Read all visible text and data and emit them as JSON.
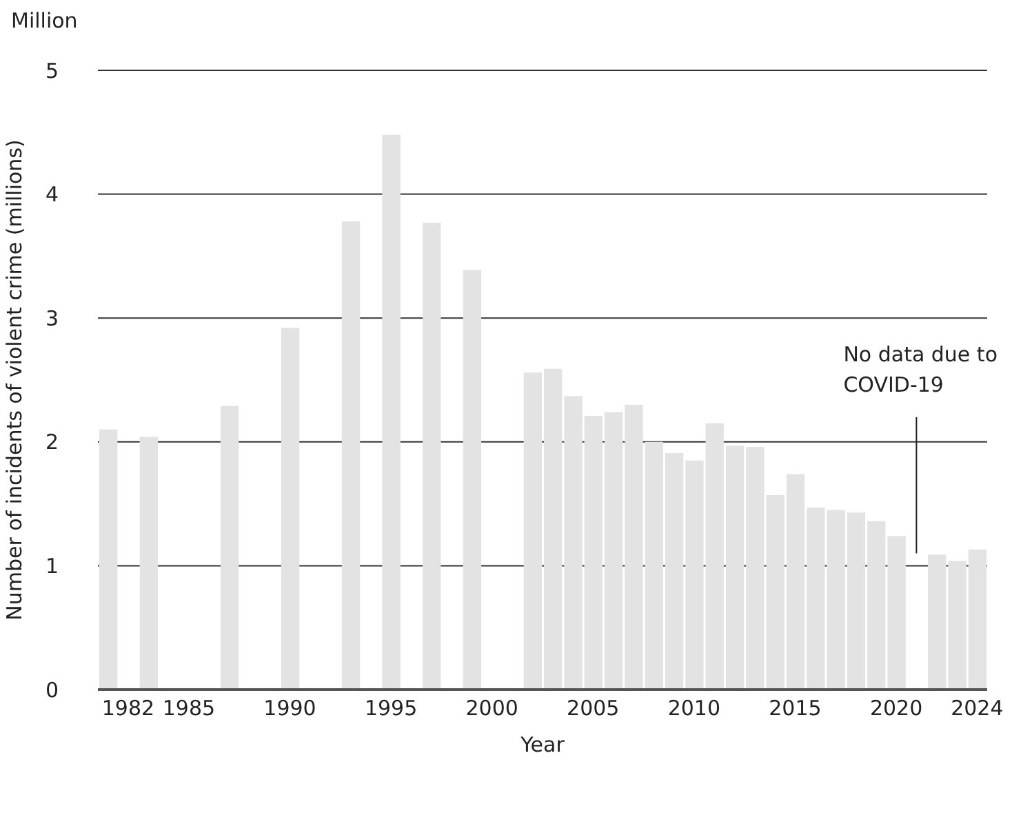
{
  "chart_data": {
    "type": "bar",
    "ylabel": "Number of incidents of violent crime (millions)",
    "xlabel": "Year",
    "x": [
      1981,
      1983,
      1987,
      1990,
      1993,
      1995,
      1997,
      1999,
      2002,
      2003,
      2004,
      2005,
      2006,
      2007,
      2008,
      2009,
      2010,
      2011,
      2012,
      2013,
      2014,
      2015,
      2016,
      2017,
      2018,
      2019,
      2020,
      2022,
      2023,
      2024
    ],
    "values": [
      2.1,
      2.04,
      2.29,
      2.92,
      3.78,
      4.48,
      3.77,
      3.39,
      2.56,
      2.59,
      2.37,
      2.21,
      2.24,
      2.3,
      2.0,
      1.91,
      1.85,
      2.15,
      1.97,
      1.96,
      1.57,
      1.74,
      1.47,
      1.45,
      1.43,
      1.36,
      1.24,
      1.09,
      1.04,
      1.13
    ],
    "color": "#e3e3e3",
    "xlim": [
      1980.5,
      2024.5
    ],
    "xticks": [
      1982,
      1985,
      1990,
      1995,
      2000,
      2005,
      2010,
      2015,
      2020,
      2024
    ],
    "ylim": [
      0,
      5
    ],
    "yticks": [
      0,
      1,
      2,
      3,
      4,
      5
    ],
    "grid": "y",
    "annotations": [
      "Million",
      "No data due to COVID-19"
    ]
  }
}
